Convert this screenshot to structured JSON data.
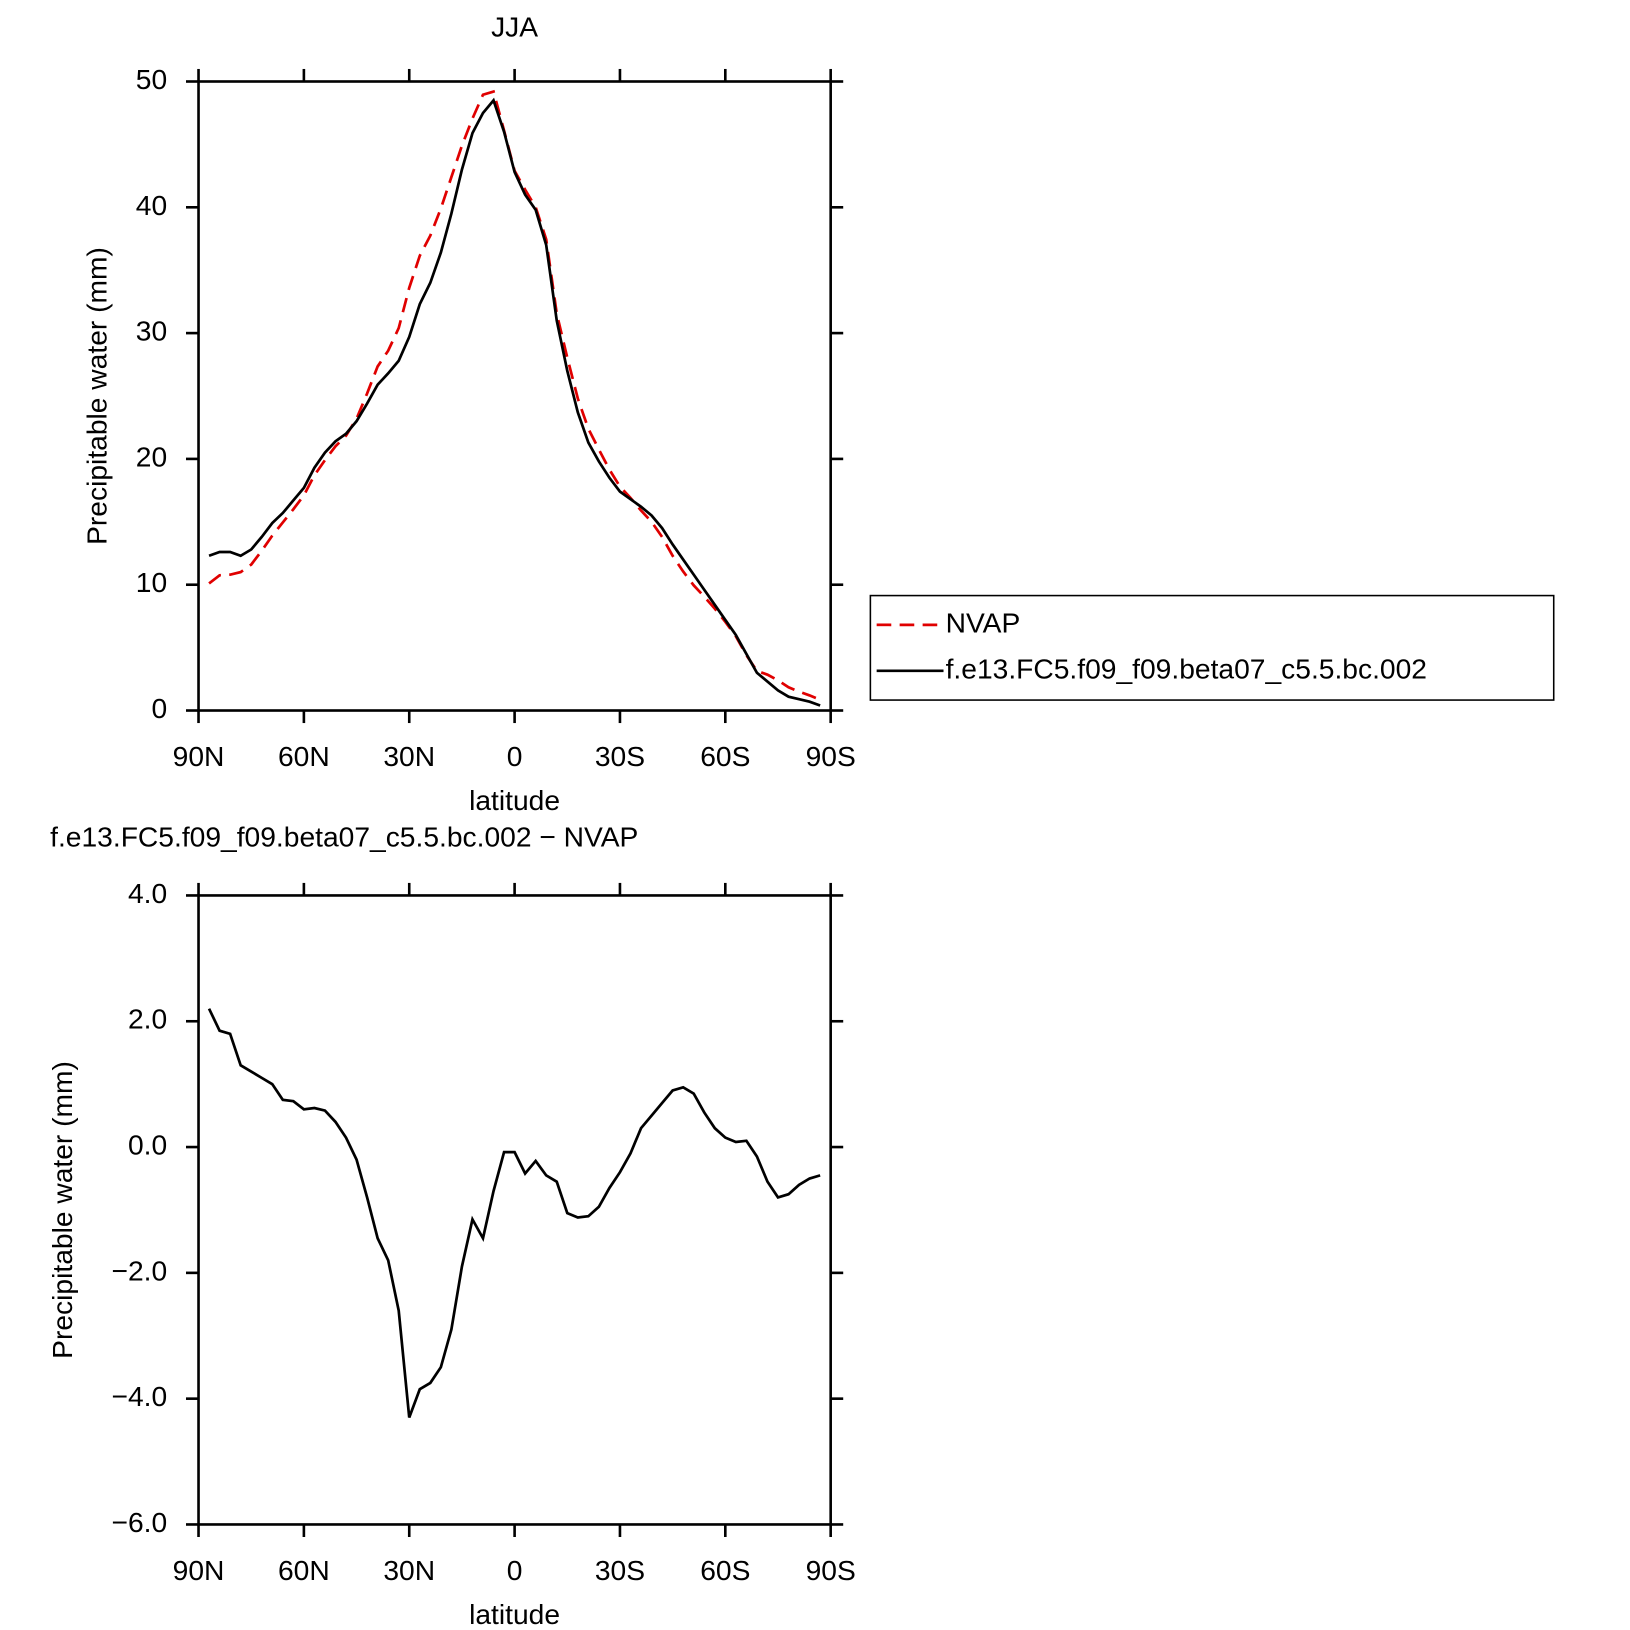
{
  "chart_data": [
    {
      "type": "line",
      "title": "JJA",
      "xlabel": "latitude",
      "ylabel": "Precipitable water (mm)",
      "x": [
        87,
        84,
        81,
        78,
        75,
        72,
        69,
        66,
        63,
        60,
        57,
        54,
        51,
        48,
        45,
        42,
        39,
        36,
        33,
        30,
        27,
        24,
        21,
        18,
        15,
        12,
        9,
        6,
        3,
        0,
        -3,
        -6,
        -9,
        -12,
        -15,
        -18,
        -21,
        -24,
        -27,
        -30,
        -33,
        -36,
        -39,
        -42,
        -45,
        -48,
        -51,
        -54,
        -57,
        -60,
        -63,
        -66,
        -69,
        -72,
        -75,
        -78,
        -81,
        -84,
        -87
      ],
      "series": [
        {
          "name": "NVAP",
          "color": "#e00000",
          "line_style": "dashed",
          "values": [
            10.1,
            10.75,
            10.8,
            11.0,
            11.6,
            12.7,
            13.9,
            14.95,
            16.0,
            17.1,
            18.7,
            19.9,
            21.0,
            21.85,
            23.2,
            25.2,
            27.35,
            28.6,
            30.4,
            33.6,
            36.15,
            37.75,
            39.9,
            42.4,
            44.9,
            47.05,
            48.95,
            49.2,
            46.1,
            42.9,
            41.4,
            40.0,
            37.45,
            31.55,
            28.05,
            24.8,
            22.4,
            20.75,
            19.15,
            17.8,
            16.9,
            15.9,
            15.0,
            13.8,
            12.3,
            11.05,
            9.95,
            9.05,
            8.1,
            7.05,
            5.9,
            4.4,
            3.15,
            2.85,
            2.4,
            1.85,
            1.5,
            1.2,
            0.85
          ]
        },
        {
          "name": "f.e13.FC5.f09_f09.beta07_c5.5.bc.002",
          "color": "#000000",
          "line_style": "solid",
          "values": [
            12.3,
            12.6,
            12.6,
            12.3,
            12.8,
            13.8,
            14.9,
            15.7,
            16.7,
            17.7,
            19.3,
            20.5,
            21.4,
            22.0,
            23.0,
            24.4,
            25.9,
            26.8,
            27.8,
            29.7,
            32.3,
            34.0,
            36.4,
            39.5,
            43.0,
            45.9,
            47.5,
            48.5,
            46.0,
            42.8,
            41.0,
            39.8,
            37.0,
            31.0,
            27.0,
            23.7,
            21.3,
            19.8,
            18.5,
            17.4,
            16.8,
            16.2,
            15.5,
            14.5,
            13.2,
            12.0,
            10.8,
            9.6,
            8.4,
            7.2,
            6.0,
            4.5,
            3.0,
            2.3,
            1.6,
            1.1,
            0.9,
            0.7,
            0.4
          ]
        }
      ],
      "xlim": [
        90,
        -90
      ],
      "xticks": [
        {
          "value": 90,
          "label": "90N"
        },
        {
          "value": 60,
          "label": "60N"
        },
        {
          "value": 30,
          "label": "30N"
        },
        0,
        {
          "value": -30,
          "label": "30S"
        },
        {
          "value": -60,
          "label": "60S"
        },
        {
          "value": -90,
          "label": "90S"
        }
      ],
      "ylim": [
        0,
        50
      ],
      "yticks": [
        0,
        10,
        20,
        30,
        40,
        50
      ],
      "legend": "outside-right"
    },
    {
      "type": "line",
      "title": "f.e13.FC5.f09_f09.beta07_c5.5.bc.002 − NVAP",
      "xlabel": "latitude",
      "ylabel": "Precipitable water (mm)",
      "x": [
        87,
        84,
        81,
        78,
        75,
        72,
        69,
        66,
        63,
        60,
        57,
        54,
        51,
        48,
        45,
        42,
        39,
        36,
        33,
        30,
        27,
        24,
        21,
        18,
        15,
        12,
        9,
        6,
        3,
        0,
        -3,
        -6,
        -9,
        -12,
        -15,
        -18,
        -21,
        -24,
        -27,
        -30,
        -33,
        -36,
        -39,
        -42,
        -45,
        -48,
        -51,
        -54,
        -57,
        -60,
        -63,
        -66,
        -69,
        -72,
        -75,
        -78,
        -81,
        -84,
        -87
      ],
      "values": [
        2.2,
        1.85,
        1.8,
        1.3,
        1.2,
        1.1,
        1.0,
        0.75,
        0.73,
        0.6,
        0.62,
        0.58,
        0.4,
        0.15,
        -0.2,
        -0.8,
        -1.45,
        -1.8,
        -2.6,
        -4.3,
        -3.85,
        -3.75,
        -3.5,
        -2.9,
        -1.9,
        -1.15,
        -1.45,
        -0.7,
        -0.08,
        -0.08,
        -0.42,
        -0.22,
        -0.45,
        -0.55,
        -1.05,
        -1.12,
        -1.1,
        -0.95,
        -0.65,
        -0.4,
        -0.1,
        0.3,
        0.5,
        0.7,
        0.9,
        0.95,
        0.85,
        0.55,
        0.3,
        0.15,
        0.08,
        0.1,
        -0.15,
        -0.55,
        -0.8,
        -0.75,
        -0.6,
        -0.5,
        -0.45
      ],
      "color": "#000000",
      "line_style": "solid",
      "xlim": [
        90,
        -90
      ],
      "xticks": [
        {
          "value": 90,
          "label": "90N"
        },
        {
          "value": 60,
          "label": "60N"
        },
        {
          "value": 30,
          "label": "30N"
        },
        0,
        {
          "value": -30,
          "label": "30S"
        },
        {
          "value": -60,
          "label": "60S"
        },
        {
          "value": -90,
          "label": "90S"
        }
      ],
      "ylim": [
        -6,
        4
      ],
      "yticks": [
        {
          "value": -6,
          "label": "−6.0"
        },
        {
          "value": -4,
          "label": "−4.0"
        },
        {
          "value": -2,
          "label": "−2.0"
        },
        {
          "value": 0,
          "label": "0.0"
        },
        {
          "value": 2,
          "label": "2.0"
        },
        {
          "value": 4,
          "label": "4.0"
        }
      ]
    }
  ]
}
